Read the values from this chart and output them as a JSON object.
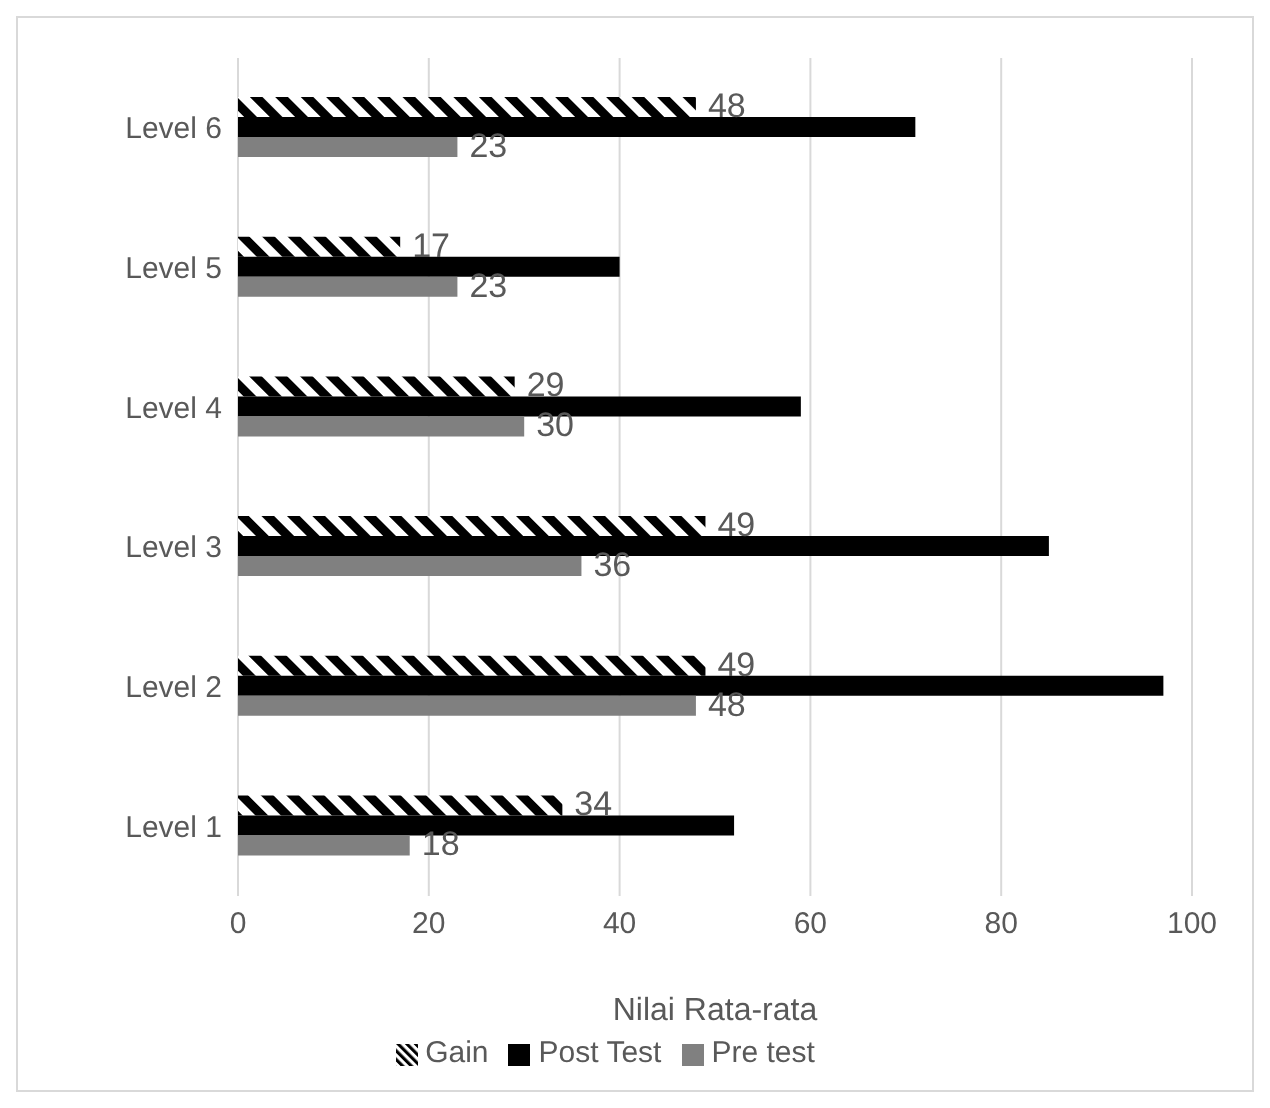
{
  "chart_data": {
    "type": "bar",
    "orientation": "horizontal",
    "xlabel": "Nilai Rata-rata",
    "categories": [
      "Level 6",
      "Level 5",
      "Level 4",
      "Level 3",
      "Level 2",
      "Level 1"
    ],
    "series": [
      {
        "name": "Gain",
        "color": "#000000",
        "values": [
          48,
          17,
          29,
          49,
          49,
          34
        ],
        "value_labels": [
          "48",
          "17",
          "29",
          "49",
          "49",
          "34"
        ]
      },
      {
        "name": "Post Test",
        "color": "#000000",
        "values": [
          71,
          40,
          59,
          85,
          97,
          52
        ]
      },
      {
        "name": "Pre test",
        "color": "#808080",
        "values": [
          23,
          23,
          30,
          36,
          48,
          18
        ],
        "value_labels": [
          "23",
          "23",
          "30",
          "36",
          "48",
          "18"
        ]
      }
    ],
    "xlim": [
      0,
      100
    ],
    "xticks": [
      0,
      20,
      40,
      60,
      80,
      100
    ],
    "grid": "x",
    "legend": "bottom"
  }
}
